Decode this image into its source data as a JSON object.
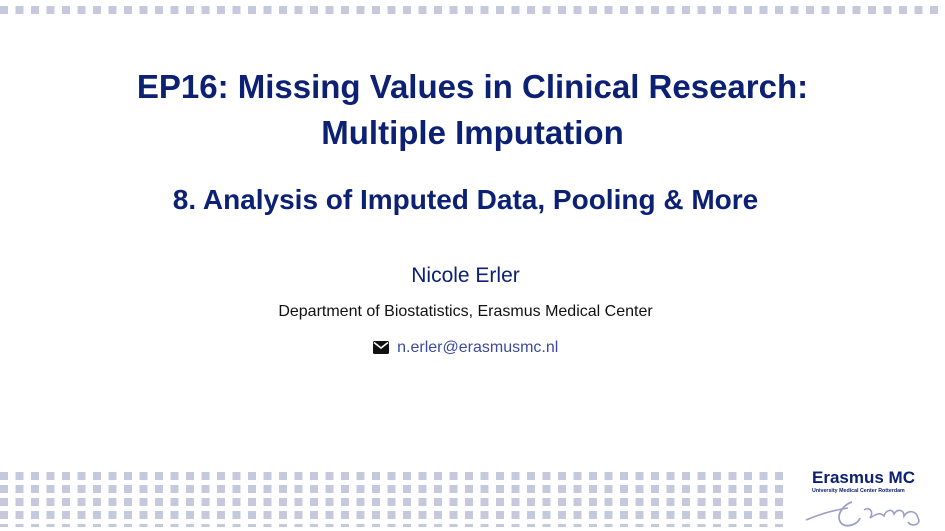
{
  "slide": {
    "title_line1": "EP16: Missing Values in Clinical Research:",
    "title_line2": "Multiple Imputation",
    "subtitle": "8. Analysis of Imputed Data, Pooling & More",
    "author": "Nicole Erler",
    "affiliation": "Department of Biostatistics, Erasmus Medical Center",
    "email": "n.erler@erasmusmc.nl",
    "email_icon": "envelope-icon"
  },
  "logo": {
    "name": "Erasmus MC",
    "tagline": "University Medical Center Rotterdam"
  },
  "colors": {
    "title": "#0c2074",
    "link": "#3c4aa0",
    "dots": "#c5c9dd"
  }
}
